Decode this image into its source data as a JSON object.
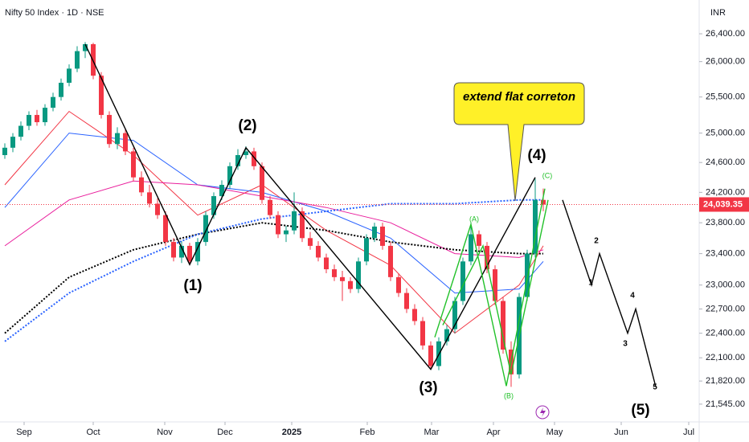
{
  "chart_data": {
    "type": "candlestick",
    "title": "Nifty 50 Index · 1D · NSE",
    "currency": "INR",
    "log_scale": true,
    "xlim": [
      -0.6,
      86.4
    ],
    "ylim": [
      21336,
      26894
    ],
    "xticks": [
      {
        "value": 2.4,
        "label": "Sep"
      },
      {
        "value": 11,
        "label": "Oct"
      },
      {
        "value": 19.9,
        "label": "Nov"
      },
      {
        "value": 27.4,
        "label": "Dec"
      },
      {
        "value": 35.7,
        "label": "2025"
      },
      {
        "value": 45.1,
        "label": "Feb"
      },
      {
        "value": 53.1,
        "label": "Mar"
      },
      {
        "value": 60.8,
        "label": "Apr"
      },
      {
        "value": 68.4,
        "label": "May"
      },
      {
        "value": 76.7,
        "label": "Jun"
      },
      {
        "value": 85.1,
        "label": "Jul"
      }
    ],
    "yticks": [
      {
        "value": 26400,
        "label": "26,400.00"
      },
      {
        "value": 26000,
        "label": "26,000.00"
      },
      {
        "value": 25500,
        "label": "25,500.00"
      },
      {
        "value": 25000,
        "label": "25,000.00"
      },
      {
        "value": 24600,
        "label": "24,600.00"
      },
      {
        "value": 24200,
        "label": "24,200.00"
      },
      {
        "value": 23800,
        "label": "23,800.00"
      },
      {
        "value": 23400,
        "label": "23,400.00"
      },
      {
        "value": 23000,
        "label": "23,000.00"
      },
      {
        "value": 22700,
        "label": "22,700.00"
      },
      {
        "value": 22400,
        "label": "22,400.00"
      },
      {
        "value": 22100,
        "label": "22,100.00"
      },
      {
        "value": 21820,
        "label": "21,820.00"
      },
      {
        "value": 21545,
        "label": "21,545.00"
      }
    ],
    "last_price": {
      "value": 24039.35,
      "label": "24,039.35"
    },
    "up_color": "#089981",
    "down_color": "#f23645",
    "candles": [
      [
        24700,
        24860,
        24650,
        24800
      ],
      [
        24800,
        25000,
        24740,
        24950
      ],
      [
        24950,
        25160,
        24900,
        25100
      ],
      [
        25100,
        25300,
        25040,
        25250
      ],
      [
        25250,
        25320,
        25100,
        25150
      ],
      [
        25150,
        25400,
        25100,
        25350
      ],
      [
        25350,
        25560,
        25300,
        25500
      ],
      [
        25500,
        25760,
        25450,
        25700
      ],
      [
        25700,
        25960,
        25650,
        25900
      ],
      [
        25900,
        26220,
        25850,
        26150
      ],
      [
        26150,
        26280,
        26050,
        26250
      ],
      [
        26250,
        26270,
        25750,
        25800
      ],
      [
        25800,
        25850,
        25200,
        25250
      ],
      [
        25250,
        25300,
        24800,
        24850
      ],
      [
        24850,
        25080,
        24780,
        25000
      ],
      [
        25000,
        25050,
        24700,
        24750
      ],
      [
        24750,
        24800,
        24350,
        24400
      ],
      [
        24400,
        24480,
        24150,
        24200
      ],
      [
        24200,
        24300,
        24000,
        24050
      ],
      [
        24050,
        24120,
        23850,
        23900
      ],
      [
        23900,
        23950,
        23500,
        23550
      ],
      [
        23550,
        23600,
        23300,
        23350
      ],
      [
        23350,
        23560,
        23280,
        23500
      ],
      [
        23500,
        23540,
        23260,
        23300
      ],
      [
        23300,
        23600,
        23250,
        23550
      ],
      [
        23550,
        23950,
        23500,
        23900
      ],
      [
        23900,
        24200,
        23850,
        24150
      ],
      [
        24150,
        24360,
        24100,
        24300
      ],
      [
        24300,
        24600,
        24250,
        24550
      ],
      [
        24550,
        24780,
        24500,
        24700
      ],
      [
        24700,
        24820,
        24650,
        24750
      ],
      [
        24750,
        24800,
        24500,
        24550
      ],
      [
        24550,
        24600,
        24050,
        24100
      ],
      [
        24100,
        24150,
        23850,
        23900
      ],
      [
        23900,
        23950,
        23600,
        23650
      ],
      [
        23650,
        23760,
        23550,
        23700
      ],
      [
        23700,
        24200,
        23650,
        23950
      ],
      [
        23950,
        24000,
        23550,
        23600
      ],
      [
        23600,
        23680,
        23450,
        23500
      ],
      [
        23500,
        23560,
        23300,
        23350
      ],
      [
        23350,
        23400,
        23150,
        23200
      ],
      [
        23200,
        23260,
        23050,
        23100
      ],
      [
        23100,
        23180,
        22800,
        23050
      ],
      [
        23050,
        23100,
        22900,
        22950
      ],
      [
        22950,
        23350,
        22900,
        23300
      ],
      [
        23300,
        23650,
        23250,
        23600
      ],
      [
        23600,
        23800,
        23550,
        23750
      ],
      [
        23750,
        23800,
        23450,
        23500
      ],
      [
        23500,
        23550,
        23050,
        23100
      ],
      [
        23100,
        23150,
        22850,
        22900
      ],
      [
        22900,
        22960,
        22650,
        22700
      ],
      [
        22700,
        22760,
        22500,
        22550
      ],
      [
        22550,
        22600,
        22200,
        22250
      ],
      [
        22250,
        22300,
        21960,
        22000
      ],
      [
        22000,
        22350,
        21950,
        22300
      ],
      [
        22300,
        22500,
        22250,
        22450
      ],
      [
        22450,
        22850,
        22400,
        22800
      ],
      [
        22800,
        23350,
        22750,
        23300
      ],
      [
        23300,
        23800,
        23250,
        23650
      ],
      [
        23650,
        23700,
        23450,
        23500
      ],
      [
        23500,
        23550,
        23150,
        23200
      ],
      [
        23200,
        23250,
        22750,
        22800
      ],
      [
        22800,
        22850,
        22150,
        22200
      ],
      [
        22200,
        22300,
        21750,
        21900
      ],
      [
        21900,
        22900,
        21850,
        22850
      ],
      [
        22850,
        23450,
        22800,
        23400
      ],
      [
        23400,
        24380,
        23350,
        24100
      ],
      [
        24100,
        24250,
        23950,
        24039.35
      ]
    ],
    "overlays": [
      {
        "color": "#f23645",
        "dash": false,
        "x": [
          0,
          8,
          16,
          24,
          32,
          40,
          48,
          56,
          64,
          67
        ],
        "values": [
          24300,
          25300,
          24700,
          23900,
          24300,
          23700,
          23250,
          22400,
          23000,
          23500
        ]
      },
      {
        "color": "#2962ff",
        "dash": false,
        "x": [
          0,
          8,
          16,
          24,
          32,
          40,
          48,
          56,
          64,
          67
        ],
        "values": [
          24000,
          25000,
          24900,
          24300,
          24200,
          23950,
          23600,
          22900,
          22950,
          23300
        ]
      },
      {
        "color": "#e91e9c",
        "dash": false,
        "x": [
          0,
          8,
          16,
          24,
          32,
          40,
          48,
          56,
          64,
          67
        ],
        "values": [
          23500,
          24100,
          24350,
          24300,
          24150,
          24000,
          23800,
          23400,
          23350,
          23450
        ]
      },
      {
        "color": "#000000",
        "dash": true,
        "x": [
          0,
          8,
          16,
          24,
          32,
          40,
          48,
          56,
          64,
          67
        ],
        "values": [
          22400,
          23100,
          23450,
          23650,
          23800,
          23700,
          23550,
          23450,
          23400,
          23400
        ]
      },
      {
        "color": "#2962ff",
        "dash": true,
        "x": [
          0,
          8,
          16,
          24,
          32,
          40,
          48,
          56,
          64,
          67
        ],
        "values": [
          22300,
          22900,
          23300,
          23650,
          23850,
          23950,
          24050,
          24050,
          24100,
          24100
        ]
      }
    ],
    "waves": [
      {
        "color": "#000000",
        "x": [
          10,
          23,
          30,
          53,
          66
        ],
        "values": [
          26250,
          23260,
          24800,
          21960,
          24400
        ]
      },
      {
        "color": "#000000",
        "x": [
          69.4,
          73,
          74,
          77.5,
          78.5,
          81
        ],
        "values": [
          24100,
          23000,
          23400,
          22400,
          22700,
          21750
        ]
      },
      {
        "color": "#22c12a",
        "x": [
          53.5,
          58,
          62.4,
          67.2
        ],
        "values": [
          22350,
          23780,
          21760,
          24250
        ]
      },
      {
        "color": "#22c12a",
        "x": [
          54.5,
          59.5,
          63,
          67.6
        ],
        "values": [
          22500,
          23500,
          21900,
          24100
        ]
      }
    ],
    "annotations": [
      "(1)",
      "(2)",
      "(3)",
      "(4)",
      "(A)",
      "(B)",
      "(C)",
      "1",
      "2",
      "3",
      "4",
      "5",
      "(5)",
      "extend flat correton"
    ]
  }
}
